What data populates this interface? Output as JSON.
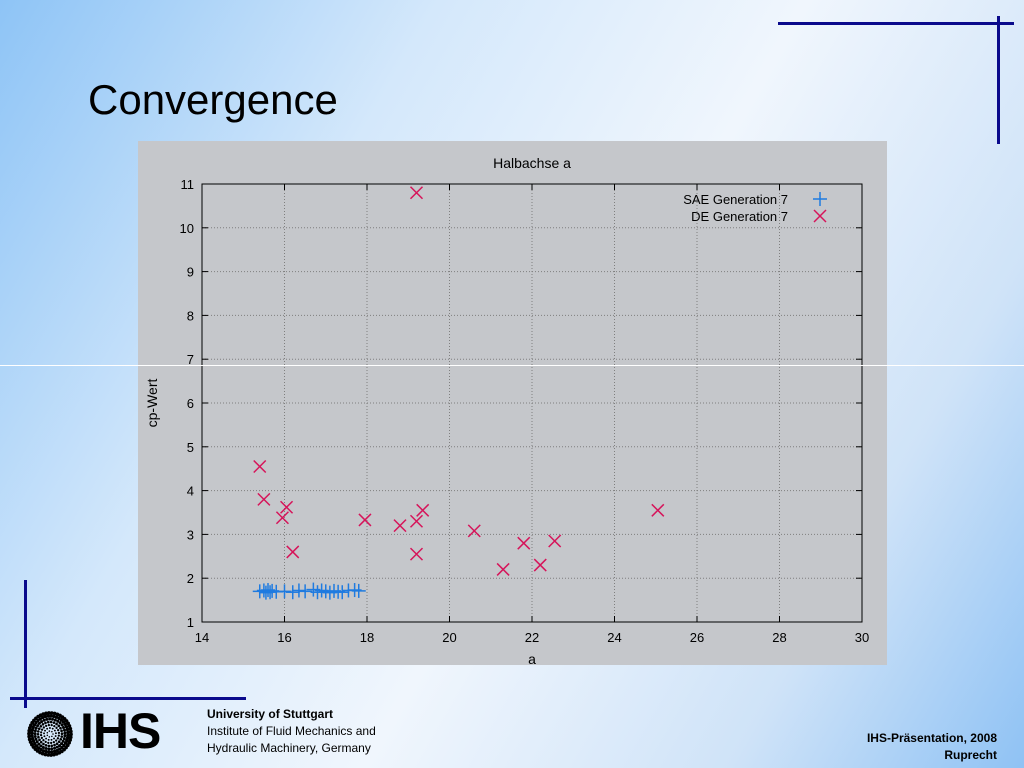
{
  "slide": {
    "title": "Convergence",
    "logo_text": "IHS",
    "university": "University of Stuttgart",
    "institute_line1": "Institute of Fluid Mechanics and",
    "institute_line2": "Hydraulic Machinery, Germany",
    "presentation": "IHS-Präsentation, 2008",
    "author": "Ruprecht"
  },
  "chart_data": {
    "type": "scatter",
    "title": "Halbachse a",
    "xlabel": "a",
    "ylabel": "cp-Wert",
    "xlim": [
      14,
      30
    ],
    "ylim": [
      1,
      11
    ],
    "xticks": [
      "14",
      "16",
      "18",
      "20",
      "22",
      "24",
      "26",
      "28",
      "30"
    ],
    "yticks": [
      "1",
      "2",
      "3",
      "4",
      "5",
      "6",
      "7",
      "8",
      "9",
      "10",
      "11"
    ],
    "grid": true,
    "legend_position": "top-right",
    "series": [
      {
        "name": "SAE Generation 7",
        "marker": "plus",
        "color": "#1f7be0",
        "points": [
          [
            15.4,
            1.7
          ],
          [
            15.5,
            1.72
          ],
          [
            15.55,
            1.67
          ],
          [
            15.6,
            1.73
          ],
          [
            15.65,
            1.68
          ],
          [
            15.7,
            1.71
          ],
          [
            15.8,
            1.69
          ],
          [
            16.0,
            1.7
          ],
          [
            16.2,
            1.68
          ],
          [
            16.35,
            1.72
          ],
          [
            16.5,
            1.7
          ],
          [
            16.7,
            1.74
          ],
          [
            16.8,
            1.68
          ],
          [
            16.9,
            1.72
          ],
          [
            17.0,
            1.7
          ],
          [
            17.1,
            1.67
          ],
          [
            17.2,
            1.71
          ],
          [
            17.3,
            1.69
          ],
          [
            17.4,
            1.68
          ],
          [
            17.55,
            1.72
          ],
          [
            17.7,
            1.73
          ],
          [
            17.8,
            1.71
          ]
        ]
      },
      {
        "name": "DE Generation 7",
        "marker": "cross",
        "color": "#d6145a",
        "points": [
          [
            19.2,
            10.8
          ],
          [
            15.4,
            4.55
          ],
          [
            15.5,
            3.8
          ],
          [
            16.05,
            3.62
          ],
          [
            15.95,
            3.38
          ],
          [
            16.2,
            2.6
          ],
          [
            17.95,
            3.33
          ],
          [
            18.8,
            3.2
          ],
          [
            19.2,
            3.3
          ],
          [
            19.35,
            3.55
          ],
          [
            19.2,
            2.55
          ],
          [
            20.6,
            3.08
          ],
          [
            21.3,
            2.2
          ],
          [
            21.8,
            2.8
          ],
          [
            22.2,
            2.3
          ],
          [
            22.55,
            2.85
          ],
          [
            25.05,
            3.55
          ]
        ]
      }
    ]
  }
}
